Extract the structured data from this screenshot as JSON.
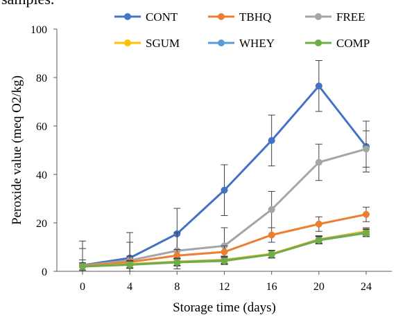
{
  "page_text": {
    "top_fragment": "samples."
  },
  "chart_data": {
    "type": "line",
    "title": "",
    "xlabel": "Storage time (days)",
    "ylabel": "Peroxide value (meq O2/kg)",
    "x": [
      0,
      4,
      8,
      12,
      16,
      20,
      24
    ],
    "x_ticks": [
      "0",
      "4",
      "8",
      "12",
      "16",
      "20",
      "24"
    ],
    "ylim": [
      0,
      100
    ],
    "y_ticks": [
      "0",
      "20",
      "40",
      "60",
      "80",
      "100"
    ],
    "grid": false,
    "legend_position": "top",
    "error_bars": true,
    "series": [
      {
        "name": "CONT",
        "color": "#4472C4",
        "values": [
          2.5,
          5.5,
          15.5,
          33.5,
          54.0,
          76.5,
          51.5
        ],
        "errors": [
          10.0,
          10.5,
          10.5,
          10.5,
          10.5,
          10.5,
          10.5
        ]
      },
      {
        "name": "TBHQ",
        "color": "#ED7D31",
        "values": [
          2.2,
          3.8,
          6.5,
          8.0,
          15.0,
          19.5,
          23.5
        ],
        "errors": [
          2.5,
          2.5,
          2.5,
          2.5,
          3.0,
          3.0,
          3.0
        ]
      },
      {
        "name": "FREE",
        "color": "#A5A5A5",
        "values": [
          2.4,
          4.5,
          8.5,
          10.5,
          25.5,
          45.0,
          50.5
        ],
        "errors": [
          7.0,
          7.5,
          7.5,
          7.5,
          7.5,
          7.5,
          7.5
        ]
      },
      {
        "name": "SGUM",
        "color": "#FFC000",
        "values": [
          2.0,
          3.0,
          4.0,
          4.8,
          7.2,
          13.2,
          16.5
        ],
        "errors": [
          1.5,
          1.5,
          1.5,
          1.5,
          1.5,
          1.5,
          1.5
        ]
      },
      {
        "name": "WHEY",
        "color": "#5B9BD5",
        "values": [
          2.0,
          2.8,
          3.8,
          4.5,
          7.0,
          13.0,
          16.0
        ],
        "errors": [
          1.5,
          1.5,
          1.5,
          1.5,
          1.5,
          1.5,
          1.5
        ]
      },
      {
        "name": "COMP",
        "color": "#70AD47",
        "values": [
          2.0,
          2.7,
          3.7,
          4.3,
          7.0,
          12.8,
          15.8
        ],
        "errors": [
          1.5,
          1.5,
          1.5,
          1.5,
          1.5,
          1.5,
          1.5
        ]
      }
    ]
  }
}
